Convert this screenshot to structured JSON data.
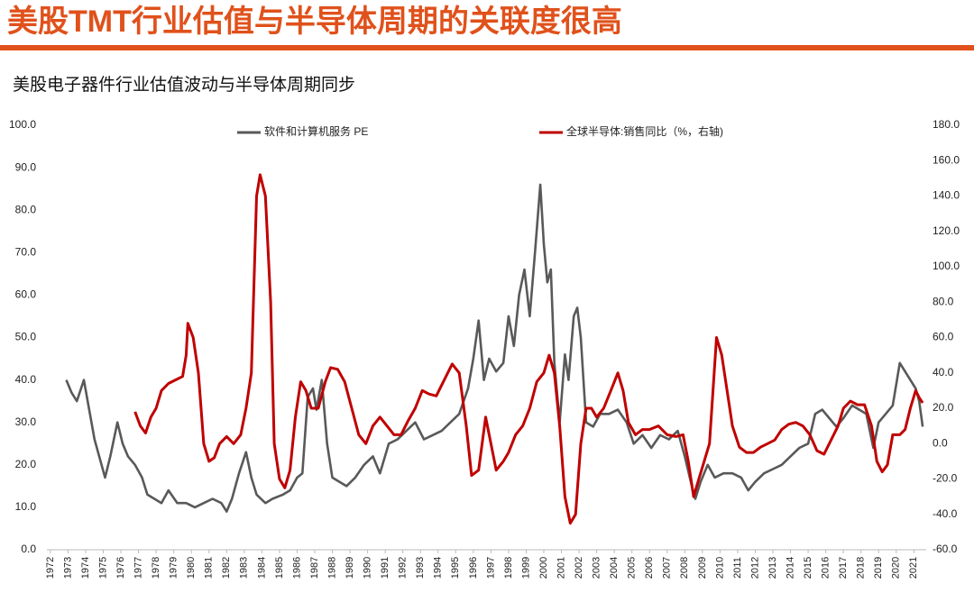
{
  "chart_data": {
    "type": "line",
    "title": "美股TMT行业估值与半导体周期的关联度很高",
    "subtitle": "美股电子器件行业估值波动与半导体周期同步",
    "legend": "top",
    "xlim": [
      1971.8,
      2021.7
    ],
    "xticks": [
      1972,
      1973,
      1974,
      1975,
      1976,
      1977,
      1978,
      1979,
      1980,
      1981,
      1982,
      1983,
      1984,
      1985,
      1986,
      1987,
      1988,
      1989,
      1990,
      1991,
      1992,
      1993,
      1994,
      1995,
      1996,
      1997,
      1998,
      1999,
      2000,
      2001,
      2002,
      2003,
      2004,
      2005,
      2006,
      2007,
      2008,
      2009,
      2010,
      2011,
      2012,
      2013,
      2014,
      2015,
      2016,
      2017,
      2018,
      2019,
      2020,
      2021
    ],
    "ylim": [
      0,
      100
    ],
    "yticks": [
      {
        "value": 0,
        "label": "0.0"
      },
      {
        "value": 10,
        "label": "10.0"
      },
      {
        "value": 20,
        "label": "20.0"
      },
      {
        "value": 30,
        "label": "30.0"
      },
      {
        "value": 40,
        "label": "40.0"
      },
      {
        "value": 50,
        "label": "50.0"
      },
      {
        "value": 60,
        "label": "60.0"
      },
      {
        "value": 70,
        "label": "70.0"
      },
      {
        "value": 80,
        "label": "80.0"
      },
      {
        "value": 90,
        "label": "90.0"
      },
      {
        "value": 100,
        "label": "100.0"
      }
    ],
    "y2lim": [
      -60,
      180
    ],
    "y2ticks": [
      {
        "value": -60,
        "label": "-60.0"
      },
      {
        "value": -40,
        "label": "-40.0"
      },
      {
        "value": -20,
        "label": "-20.0"
      },
      {
        "value": 0,
        "label": "0.0"
      },
      {
        "value": 20,
        "label": "20.0"
      },
      {
        "value": 40,
        "label": "40.0"
      },
      {
        "value": 60,
        "label": "60.0"
      },
      {
        "value": 80,
        "label": "80.0"
      },
      {
        "value": 100,
        "label": "100.0"
      },
      {
        "value": 120,
        "label": "120.0"
      },
      {
        "value": 140,
        "label": "140.0"
      },
      {
        "value": 160,
        "label": "160.0"
      },
      {
        "value": 180,
        "label": "180.0"
      }
    ],
    "series": [
      {
        "name": "软件和计算机服务 PE",
        "color": "#595959",
        "x": [
          1972.9,
          1973.2,
          1973.5,
          1973.9,
          1974.2,
          1974.5,
          1974.9,
          1975.1,
          1975.4,
          1975.8,
          1976.1,
          1976.4,
          1976.8,
          1977.2,
          1977.5,
          1977.9,
          1978.3,
          1978.7,
          1979.2,
          1979.7,
          1980.2,
          1980.7,
          1981.2,
          1981.7,
          1982.0,
          1982.3,
          1982.7,
          1983.1,
          1983.4,
          1983.7,
          1984.2,
          1984.6,
          1985.2,
          1985.6,
          1986.0,
          1986.3,
          1986.6,
          1986.9,
          1987.1,
          1987.4,
          1987.7,
          1988.0,
          1988.4,
          1988.8,
          1989.3,
          1989.8,
          1990.3,
          1990.7,
          1991.2,
          1991.7,
          1992.2,
          1992.7,
          1993.2,
          1993.7,
          1994.2,
          1994.7,
          1995.2,
          1995.7,
          1996.0,
          1996.3,
          1996.6,
          1996.9,
          1997.3,
          1997.7,
          1998.0,
          1998.3,
          1998.6,
          1998.9,
          1999.2,
          1999.5,
          1999.8,
          2000.0,
          2000.2,
          2000.4,
          2000.6,
          2000.9,
          2001.2,
          2001.4,
          2001.7,
          2001.9,
          2002.1,
          2002.4,
          2002.8,
          2003.2,
          2003.7,
          2004.2,
          2004.7,
          2005.1,
          2005.6,
          2006.1,
          2006.6,
          2007.1,
          2007.6,
          2008.0,
          2008.4,
          2008.6,
          2008.9,
          2009.3,
          2009.7,
          2010.2,
          2010.7,
          2011.2,
          2011.6,
          2012.0,
          2012.5,
          2013.0,
          2013.5,
          2014.0,
          2014.5,
          2015.0,
          2015.4,
          2015.8,
          2016.2,
          2016.6,
          2017.0,
          2017.5,
          2017.9,
          2018.3,
          2018.7,
          2019.0,
          2019.4,
          2019.8,
          2020.2,
          2020.5,
          2020.8,
          2021.1,
          2021.3,
          2021.5
        ],
        "values": [
          40,
          37,
          35,
          40,
          33,
          26,
          20,
          17,
          22,
          30,
          25,
          22,
          20,
          17,
          13,
          12,
          11,
          14,
          11,
          11,
          10,
          11,
          12,
          11,
          9,
          12,
          18,
          23,
          17,
          13,
          11,
          12,
          13,
          14,
          17,
          18,
          36,
          38,
          33,
          40,
          25,
          17,
          16,
          15,
          17,
          20,
          22,
          18,
          25,
          26,
          28,
          30,
          26,
          27,
          28,
          30,
          32,
          38,
          45,
          54,
          40,
          45,
          42,
          44,
          55,
          48,
          60,
          66,
          55,
          70,
          86,
          72,
          63,
          66,
          44,
          30,
          46,
          40,
          55,
          57,
          50,
          30,
          29,
          32,
          32,
          33,
          30,
          25,
          27,
          24,
          27,
          26,
          28,
          22,
          15,
          12,
          16,
          20,
          17,
          18,
          18,
          17,
          14,
          16,
          18,
          19,
          20,
          22,
          24,
          25,
          32,
          33,
          31,
          29,
          31,
          34,
          33,
          32,
          24,
          30,
          32,
          34,
          44,
          42,
          40,
          38,
          35,
          29
        ]
      },
      {
        "name": "全球半导体:销售同比（%，右轴)",
        "color": "#c00000",
        "axis": "y2",
        "x": [
          1976.8,
          1977.1,
          1977.4,
          1977.7,
          1978.0,
          1978.3,
          1978.7,
          1979.1,
          1979.5,
          1979.7,
          1979.8,
          1980.1,
          1980.4,
          1980.7,
          1981.0,
          1981.3,
          1981.6,
          1982.0,
          1982.4,
          1982.8,
          1983.1,
          1983.4,
          1983.7,
          1983.9,
          1984.2,
          1984.5,
          1984.7,
          1985.0,
          1985.3,
          1985.6,
          1985.9,
          1986.2,
          1986.5,
          1986.8,
          1987.2,
          1987.6,
          1987.9,
          1988.3,
          1988.7,
          1989.1,
          1989.5,
          1989.9,
          1990.3,
          1990.7,
          1991.1,
          1991.5,
          1991.9,
          1992.3,
          1992.7,
          1993.1,
          1993.5,
          1993.9,
          1994.3,
          1994.8,
          1995.2,
          1995.6,
          1995.9,
          1996.3,
          1996.7,
          1996.9,
          1997.3,
          1997.7,
          1998.0,
          1998.4,
          1998.8,
          1999.2,
          1999.6,
          2000.0,
          2000.3,
          2000.6,
          2000.9,
          2001.2,
          2001.5,
          2001.8,
          2002.1,
          2002.4,
          2002.7,
          2003.0,
          2003.4,
          2003.8,
          2004.2,
          2004.5,
          2004.8,
          2005.2,
          2005.6,
          2006.0,
          2006.5,
          2007.0,
          2007.5,
          2007.9,
          2008.2,
          2008.5,
          2008.8,
          2009.1,
          2009.4,
          2009.6,
          2009.8,
          2010.1,
          2010.4,
          2010.7,
          2011.1,
          2011.5,
          2011.9,
          2012.3,
          2012.7,
          2013.1,
          2013.5,
          2013.9,
          2014.3,
          2014.7,
          2015.1,
          2015.5,
          2015.9,
          2016.3,
          2016.7,
          2017.0,
          2017.4,
          2017.8,
          2018.2,
          2018.6,
          2018.9,
          2019.2,
          2019.5,
          2019.8,
          2020.2,
          2020.5,
          2020.8,
          2021.1,
          2021.3,
          2021.5
        ],
        "values": [
          18,
          10,
          6,
          15,
          20,
          30,
          34,
          36,
          38,
          50,
          68,
          60,
          40,
          0,
          -10,
          -8,
          0,
          4,
          0,
          5,
          20,
          40,
          140,
          152,
          140,
          80,
          0,
          -20,
          -25,
          -15,
          15,
          35,
          30,
          20,
          20,
          35,
          43,
          42,
          35,
          20,
          5,
          0,
          10,
          15,
          10,
          5,
          5,
          13,
          20,
          30,
          28,
          27,
          35,
          45,
          40,
          10,
          -18,
          -15,
          15,
          5,
          -15,
          -10,
          -5,
          5,
          10,
          20,
          35,
          40,
          50,
          40,
          10,
          -30,
          -45,
          -40,
          0,
          20,
          20,
          15,
          20,
          30,
          40,
          30,
          12,
          5,
          8,
          8,
          10,
          5,
          4,
          5,
          -10,
          -30,
          -20,
          -10,
          0,
          30,
          60,
          50,
          30,
          10,
          -2,
          -5,
          -5,
          -2,
          0,
          2,
          8,
          11,
          12,
          10,
          5,
          -4,
          -6,
          2,
          10,
          20,
          24,
          22,
          22,
          10,
          -10,
          -16,
          -12,
          5,
          5,
          8,
          20,
          30,
          26,
          23
        ]
      }
    ]
  }
}
